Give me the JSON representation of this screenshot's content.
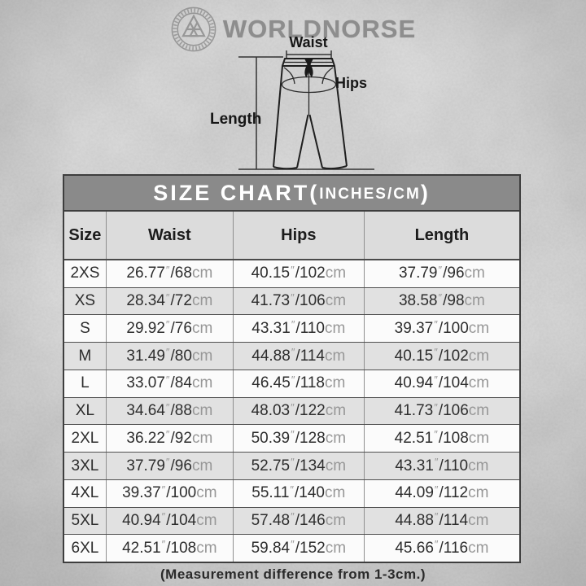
{
  "brand": {
    "name": "WORLDNORSE",
    "logo_icon": "valknut-emblem"
  },
  "diagram": {
    "waist_label": "Waist",
    "hips_label": "Hips",
    "length_label": "Length"
  },
  "size_chart": {
    "title_main": "SIZE CHART(",
    "title_small": "INCHES/CM",
    "title_close": ")",
    "columns": [
      "Size",
      "Waist",
      "Hips",
      "Length"
    ],
    "inch_mark": "″",
    "cm_unit": "cm",
    "note": "(Measurement difference from 1-3cm.)",
    "rows": [
      {
        "size": "2XS",
        "waist_in": "26.77",
        "waist_cm": "68",
        "hips_in": "40.15",
        "hips_cm": "102",
        "length_in": "37.79",
        "length_cm": "96"
      },
      {
        "size": "XS",
        "waist_in": "28.34",
        "waist_cm": "72",
        "hips_in": "41.73",
        "hips_cm": "106",
        "length_in": "38.58",
        "length_cm": "98"
      },
      {
        "size": "S",
        "waist_in": "29.92",
        "waist_cm": "76",
        "hips_in": "43.31",
        "hips_cm": "110",
        "length_in": "39.37",
        "length_cm": "100"
      },
      {
        "size": "M",
        "waist_in": "31.49",
        "waist_cm": "80",
        "hips_in": "44.88",
        "hips_cm": "114",
        "length_in": "40.15",
        "length_cm": "102"
      },
      {
        "size": "L",
        "waist_in": "33.07",
        "waist_cm": "84",
        "hips_in": "46.45",
        "hips_cm": "118",
        "length_in": "40.94",
        "length_cm": "104"
      },
      {
        "size": "XL",
        "waist_in": "34.64",
        "waist_cm": "88",
        "hips_in": "48.03",
        "hips_cm": "122",
        "length_in": "41.73",
        "length_cm": "106"
      },
      {
        "size": "2XL",
        "waist_in": "36.22",
        "waist_cm": "92",
        "hips_in": "50.39",
        "hips_cm": "128",
        "length_in": "42.51",
        "length_cm": "108"
      },
      {
        "size": "3XL",
        "waist_in": "37.79",
        "waist_cm": "96",
        "hips_in": "52.75",
        "hips_cm": "134",
        "length_in": "43.31",
        "length_cm": "110"
      },
      {
        "size": "4XL",
        "waist_in": "39.37",
        "waist_cm": "100",
        "hips_in": "55.11",
        "hips_cm": "140",
        "length_in": "44.09",
        "length_cm": "112"
      },
      {
        "size": "5XL",
        "waist_in": "40.94",
        "waist_cm": "104",
        "hips_in": "57.48",
        "hips_cm": "146",
        "length_in": "44.88",
        "length_cm": "114"
      },
      {
        "size": "6XL",
        "waist_in": "42.51",
        "waist_cm": "108",
        "hips_in": "59.84",
        "hips_cm": "152",
        "length_in": "45.66",
        "length_cm": "116"
      }
    ]
  },
  "colors": {
    "background": "#c2c2c2",
    "title_bar": "#8a8a8a",
    "header_row": "#dcdcdc",
    "row_light": "#fbfbfb",
    "row_shaded": "#e1e1e1",
    "border_dark": "#3e3e3e",
    "text_dark": "#2d2d2d",
    "unit_gray": "#979797",
    "brand_gray": "#8d8d8d"
  },
  "chart_data": {
    "type": "table",
    "title": "SIZE CHART(INCHES/CM)",
    "columns": [
      "Size",
      "Waist",
      "Hips",
      "Length"
    ],
    "units": "inches/cm",
    "rows": [
      [
        "2XS",
        "26.77″/68cm",
        "40.15″/102cm",
        "37.79″/96cm"
      ],
      [
        "XS",
        "28.34″/72cm",
        "41.73″/106cm",
        "38.58″/98cm"
      ],
      [
        "S",
        "29.92″/76cm",
        "43.31″/110cm",
        "39.37″/100cm"
      ],
      [
        "M",
        "31.49″/80cm",
        "44.88″/114cm",
        "40.15″/102cm"
      ],
      [
        "L",
        "33.07″/84cm",
        "46.45″/118cm",
        "40.94″/104cm"
      ],
      [
        "XL",
        "34.64″/88cm",
        "48.03″/122cm",
        "41.73″/106cm"
      ],
      [
        "2XL",
        "36.22″/92cm",
        "50.39″/128cm",
        "42.51″/108cm"
      ],
      [
        "3XL",
        "37.79″/96cm",
        "52.75″/134cm",
        "43.31″/110cm"
      ],
      [
        "4XL",
        "39.37″/100cm",
        "55.11″/140cm",
        "44.09″/112cm"
      ],
      [
        "5XL",
        "40.94″/104cm",
        "57.48″/146cm",
        "44.88″/114cm"
      ],
      [
        "6XL",
        "42.51″/108cm",
        "59.84″/152cm",
        "45.66″/116cm"
      ]
    ],
    "note": "(Measurement difference from 1-3cm.)"
  }
}
